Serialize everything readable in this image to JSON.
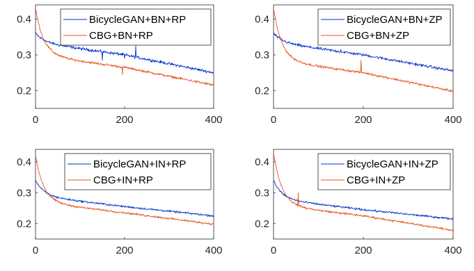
{
  "colors": {
    "series1": "#0033cc",
    "series2": "#e8521a"
  },
  "chart_data": [
    {
      "type": "line",
      "xlim": [
        0,
        400
      ],
      "ylim": [
        0.15,
        0.44
      ],
      "xticks": [
        "0",
        "200",
        "400"
      ],
      "yticks": [
        "0.2",
        "0.3",
        "0.4"
      ],
      "legend_position": "top-right",
      "series": [
        {
          "name": "BicycleGAN+BN+RP",
          "start": 0.36,
          "mid": 0.3,
          "end": 0.25,
          "noise": 0.006,
          "spikes": [
            [
              150,
              0.285
            ],
            [
              200,
              0.29
            ],
            [
              225,
              0.325
            ]
          ]
        },
        {
          "name": "CBG+BN+RP",
          "start": 0.43,
          "mid": 0.265,
          "end": 0.215,
          "noise": 0.005,
          "spikes": [
            [
              195,
              0.245
            ]
          ]
        }
      ]
    },
    {
      "type": "line",
      "xlim": [
        0,
        400
      ],
      "ylim": [
        0.15,
        0.44
      ],
      "xticks": [
        "0",
        "200",
        "400"
      ],
      "yticks": [
        "0.2",
        "0.3",
        "0.4"
      ],
      "legend_position": "top-right",
      "series": [
        {
          "name": "BicycleGAN+BN+ZP",
          "start": 0.36,
          "mid": 0.3,
          "end": 0.255,
          "noise": 0.006,
          "spikes": [
            [
              150,
              0.315
            ]
          ]
        },
        {
          "name": "CBG+BN+ZP",
          "start": 0.43,
          "mid": 0.25,
          "end": 0.198,
          "noise": 0.005,
          "spikes": [
            [
              195,
              0.285
            ]
          ]
        }
      ]
    },
    {
      "type": "line",
      "xlim": [
        0,
        400
      ],
      "ylim": [
        0.15,
        0.44
      ],
      "xticks": [
        "0",
        "200",
        "400"
      ],
      "yticks": [
        "0.2",
        "0.3",
        "0.4"
      ],
      "legend_position": "top-right",
      "series": [
        {
          "name": "BicycleGAN+IN+RP",
          "start": 0.34,
          "mid": 0.255,
          "end": 0.225,
          "noise": 0.005,
          "spikes": [
            [
              155,
              0.265
            ]
          ]
        },
        {
          "name": "CBG+IN+RP",
          "start": 0.42,
          "mid": 0.235,
          "end": 0.198,
          "noise": 0.005,
          "spikes": []
        }
      ]
    },
    {
      "type": "line",
      "xlim": [
        0,
        400
      ],
      "ylim": [
        0.15,
        0.44
      ],
      "xticks": [
        "0",
        "200",
        "400"
      ],
      "yticks": [
        "0.2",
        "0.3",
        "0.4"
      ],
      "legend_position": "top-right",
      "series": [
        {
          "name": "BicycleGAN+IN+ZP",
          "start": 0.34,
          "mid": 0.245,
          "end": 0.215,
          "noise": 0.005,
          "spikes": []
        },
        {
          "name": "CBG+IN+ZP",
          "start": 0.43,
          "mid": 0.225,
          "end": 0.178,
          "noise": 0.005,
          "spikes": [
            [
              55,
              0.3
            ]
          ]
        }
      ]
    }
  ]
}
